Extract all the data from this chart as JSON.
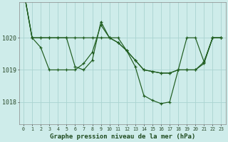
{
  "title": "Graphe pression niveau de la mer (hPa)",
  "background_color": "#ceecea",
  "line_color": "#1e5c1e",
  "grid_color": "#aad4d0",
  "yticks": [
    1018,
    1019,
    1020
  ],
  "ylim": [
    1017.3,
    1021.1
  ],
  "xlim": [
    -0.5,
    23.5
  ],
  "series": [
    [
      1021.5,
      1020.0,
      1020.0,
      1020.0,
      1020.0,
      1020.0,
      1020.0,
      1020.0,
      1020.0,
      1020.0,
      1020.0,
      1020.0,
      1019.6,
      1019.3,
      1019.0,
      1018.95,
      1018.9,
      1018.9,
      1019.0,
      1019.0,
      1019.0,
      1019.2,
      1020.0,
      1020.0
    ],
    [
      1021.5,
      1020.0,
      1020.0,
      1020.0,
      1020.0,
      1020.0,
      1019.1,
      1019.0,
      1019.3,
      1020.5,
      1020.0,
      1019.85,
      1019.6,
      1019.3,
      1019.0,
      1018.95,
      1018.9,
      1018.9,
      1019.0,
      1020.0,
      1020.0,
      1019.25,
      1020.0,
      1020.0
    ],
    [
      1021.5,
      1020.0,
      1019.7,
      1019.0,
      1019.0,
      1019.0,
      1019.0,
      1019.2,
      1019.55,
      1020.4,
      1020.0,
      1019.85,
      1019.6,
      1019.1,
      1018.2,
      1018.05,
      1017.95,
      1018.0,
      1019.0,
      1019.0,
      1019.0,
      1019.25,
      1020.0,
      1020.0
    ]
  ]
}
